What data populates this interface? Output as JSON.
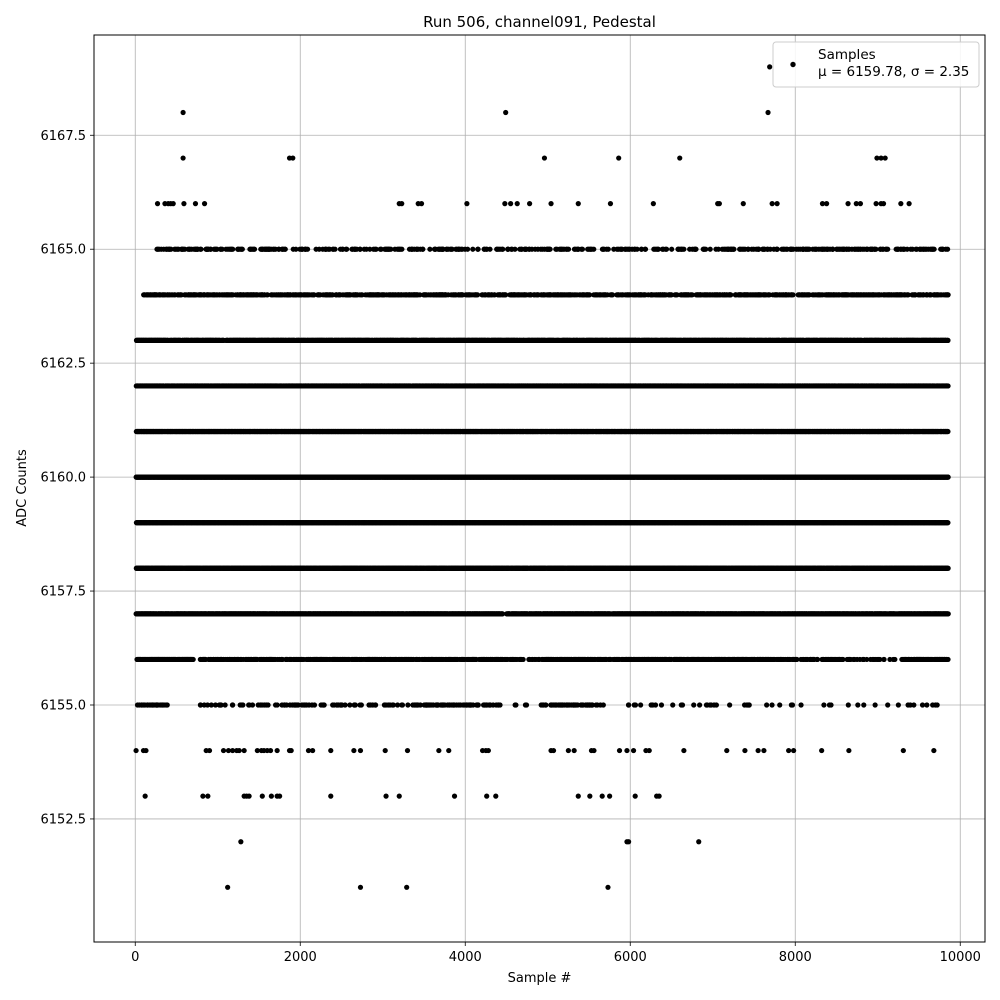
{
  "chart_data": {
    "type": "scatter",
    "title": "Run 506, channel091, Pedestal",
    "xlabel": "Sample #",
    "ylabel": "ADC Counts",
    "xlim": [
      -500,
      10300
    ],
    "ylim": [
      6149.8,
      6169.7
    ],
    "x_ticks": [
      0,
      2000,
      4000,
      6000,
      8000,
      10000
    ],
    "x_tick_labels": [
      "0",
      "2000",
      "4000",
      "6000",
      "8000",
      "10000"
    ],
    "y_ticks": [
      6152.5,
      6155.0,
      6157.5,
      6160.0,
      6162.5,
      6165.0,
      6167.5
    ],
    "y_tick_labels": [
      "6152.5",
      "6155.0",
      "6157.5",
      "6160.0",
      "6162.5",
      "6165.0",
      "6167.5"
    ],
    "grid": true,
    "legend": {
      "placement": "top-right",
      "label": "Samples",
      "stats_line": "μ = 6159.78, σ = 2.35"
    },
    "marker_color": "#000000",
    "series": [
      {
        "name": "Samples",
        "n_samples": 9850,
        "mean": 6159.78,
        "sigma": 2.35,
        "levels": [
          {
            "y": 6151,
            "x": [
              1120,
              2730,
              3290,
              5730
            ]
          },
          {
            "y": 6152,
            "x": [
              1280,
              5960,
              5980,
              6830
            ]
          },
          {
            "y": 6153,
            "x": [
              120,
              820,
              880,
              1320,
              1350,
              1380,
              1540,
              1650,
              1720,
              1750,
              2370,
              3040,
              3200,
              3870,
              4260,
              4370,
              5370,
              5510,
              5660,
              5750,
              6060,
              6320,
              6350
            ]
          },
          {
            "y": 6154,
            "x": [
              10,
              100,
              130,
              860,
              900,
              1070,
              1130,
              1180,
              1230,
              1260,
              1320,
              1480,
              1530,
              1560,
              1600,
              1640,
              1720,
              1870,
              1890,
              2100,
              2150,
              2370,
              2650,
              2730,
              3030,
              3300,
              3680,
              3800,
              4210,
              4250,
              4280,
              5040,
              5070,
              5250,
              5320,
              5530,
              5560,
              5870,
              5960,
              6040,
              6190,
              6230,
              6650,
              7170,
              7390,
              7550,
              7620,
              7920,
              7980,
              8320,
              8650,
              9310,
              9680
            ]
          },
          {
            "y": 6155,
            "bands": [
              [
                20,
                400,
                0.32
              ],
              [
                780,
                3500,
                0.18
              ],
              [
                3500,
                4450,
                0.28
              ],
              [
                4450,
                4900,
                0.05
              ],
              [
                4900,
                5600,
                0.3
              ],
              [
                5600,
                7100,
                0.08
              ],
              [
                7100,
                9000,
                0.04
              ],
              [
                9000,
                9750,
                0.07
              ]
            ]
          },
          {
            "y": 6156,
            "bands": [
              [
                20,
                700,
                0.85
              ],
              [
                780,
                4450,
                0.55
              ],
              [
                4450,
                5000,
                0.35
              ],
              [
                5000,
                7700,
                0.65
              ],
              [
                7700,
                8700,
                0.45
              ],
              [
                8700,
                9300,
                0.15
              ],
              [
                9300,
                9850,
                0.7
              ]
            ]
          },
          {
            "y": 6157,
            "bands": [
              [
                10,
                4450,
                0.95
              ],
              [
                4500,
                9850,
                0.92
              ]
            ]
          },
          {
            "y": 6158,
            "bands": [
              [
                10,
                9850,
                0.93
              ]
            ]
          },
          {
            "y": 6159,
            "bands": [
              [
                10,
                9850,
                1.0
              ]
            ]
          },
          {
            "y": 6160,
            "bands": [
              [
                10,
                9850,
                1.0
              ]
            ]
          },
          {
            "y": 6161,
            "bands": [
              [
                10,
                9850,
                0.98
              ]
            ]
          },
          {
            "y": 6162,
            "bands": [
              [
                10,
                9850,
                0.95
              ]
            ]
          },
          {
            "y": 6163,
            "bands": [
              [
                10,
                9850,
                0.85
              ]
            ]
          },
          {
            "y": 6164,
            "bands": [
              [
                100,
                9850,
                0.45
              ]
            ]
          },
          {
            "y": 6165,
            "bands": [
              [
                250,
                9850,
                0.22
              ]
            ]
          },
          {
            "y": 6166,
            "x": [
              270,
              360,
              400,
              430,
              460,
              590,
              730,
              840,
              3200,
              3230,
              3430,
              3470,
              4020,
              4480,
              4550,
              4630,
              4780,
              5040,
              5370,
              5760,
              6280,
              7060,
              7080,
              7370,
              7720,
              7780,
              8330,
              8380,
              8640,
              8740,
              8790,
              8980,
              9040,
              9070,
              9280,
              9380
            ]
          },
          {
            "y": 6167,
            "x": [
              580,
              1870,
              1910,
              4960,
              5860,
              6600,
              8990,
              9040,
              9090
            ]
          },
          {
            "y": 6168,
            "x": [
              580,
              4490,
              7670
            ]
          },
          {
            "y": 6169,
            "x": [
              7690
            ]
          }
        ]
      }
    ]
  }
}
